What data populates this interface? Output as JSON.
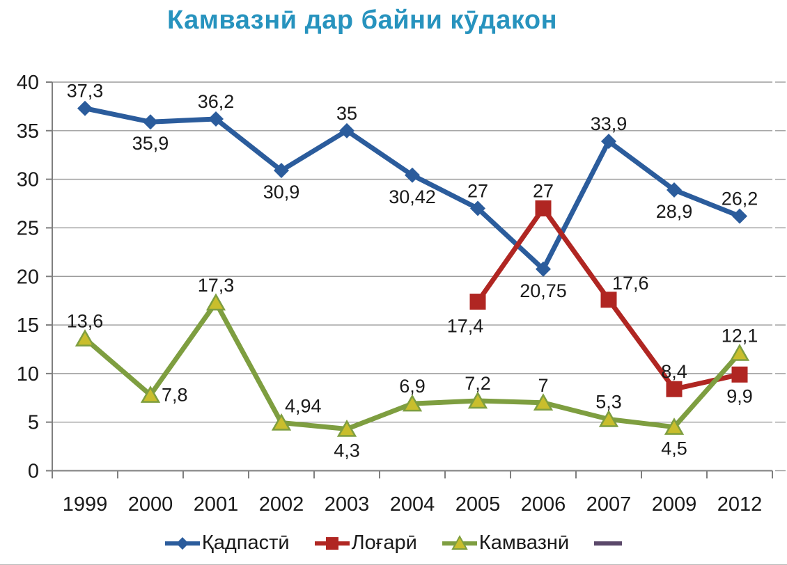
{
  "title": {
    "text": "Камвазнӣ дар байни кӯдакон",
    "color": "#2793BE"
  },
  "chart_data": {
    "type": "line",
    "title": "Камвазнӣ дар байни кӯдакон",
    "categories": [
      "1999",
      "2000",
      "2001",
      "2002",
      "2003",
      "2004",
      "2005",
      "2006",
      "2007",
      "2009",
      "2012"
    ],
    "ylim": [
      0,
      40
    ],
    "yticks": [
      0,
      5,
      10,
      15,
      20,
      25,
      30,
      35,
      40
    ],
    "ytick_labels": [
      "0",
      "5",
      "10",
      "15",
      "20",
      "25",
      "30",
      "35",
      "40"
    ],
    "grid": true,
    "legend_position": "bottom",
    "colors": {
      "grid": "#9c9c9c",
      "axis": "#7f7f7f",
      "text": "#1a1a1a"
    },
    "series": [
      {
        "name": "Қадпастӣ",
        "color": "#2B5C9C",
        "marker": "diamond",
        "marker_fill": "#2B5C9C",
        "values": [
          37.3,
          35.9,
          36.2,
          30.9,
          35,
          30.42,
          27,
          20.75,
          33.9,
          28.9,
          26.2
        ],
        "labels": [
          "37,3",
          "35,9",
          "36,2",
          "30,9",
          "35",
          "30,42",
          "27",
          "20,75",
          "33,9",
          "28,9",
          "26,2"
        ],
        "label_pos": [
          "above",
          "below",
          "above",
          "below",
          "above",
          "below",
          "above",
          "below",
          "above",
          "below",
          "above"
        ]
      },
      {
        "name": "Лоғарӣ",
        "color": "#B02622",
        "marker": "square",
        "marker_fill": "#B02622",
        "values": [
          null,
          null,
          null,
          null,
          null,
          null,
          17.4,
          27,
          17.6,
          8.4,
          9.9
        ],
        "labels": [
          null,
          null,
          null,
          null,
          null,
          null,
          "17,4",
          "27",
          "17,6",
          "8,4",
          "9,9"
        ],
        "label_pos": [
          null,
          null,
          null,
          null,
          null,
          null,
          "below-left",
          "above",
          "above-right",
          "above",
          "below"
        ]
      },
      {
        "name": "Камвазнӣ",
        "color": "#7E9E40",
        "marker": "triangle",
        "marker_fill": "#C9BE2D",
        "values": [
          13.6,
          7.8,
          17.3,
          4.94,
          4.3,
          6.9,
          7.2,
          7,
          5.3,
          4.5,
          12.1
        ],
        "labels": [
          "13,6",
          "7,8",
          "17,3",
          "4,94",
          "4,3",
          "6,9",
          "7,2",
          "7",
          "5,3",
          "4,5",
          "12,1"
        ],
        "label_pos": [
          "above",
          "right",
          "above",
          "above-right",
          "below",
          "above",
          "above",
          "above",
          "above",
          "below",
          "above"
        ]
      },
      {
        "name": "",
        "color": "#5A4769",
        "marker": "line",
        "values": [],
        "labels": [],
        "label_pos": []
      }
    ]
  }
}
